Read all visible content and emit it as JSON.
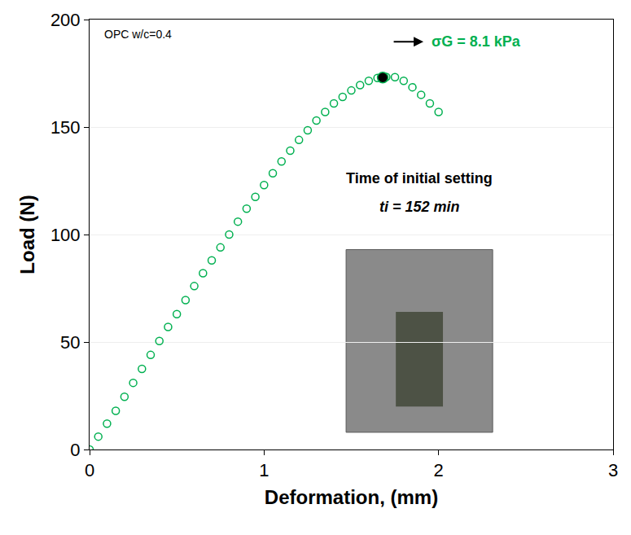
{
  "chart_data": {
    "type": "scatter",
    "x_label": "Deformation, (mm)",
    "y_label": "Load (N)",
    "note": "OPC w/c=0.4",
    "x": [
      0,
      0.05,
      0.1,
      0.15,
      0.2,
      0.25,
      0.3,
      0.35,
      0.4,
      0.45,
      0.5,
      0.55,
      0.6,
      0.65,
      0.7,
      0.75,
      0.8,
      0.85,
      0.9,
      0.95,
      1.0,
      1.05,
      1.1,
      1.15,
      1.2,
      1.25,
      1.3,
      1.35,
      1.4,
      1.45,
      1.5,
      1.55,
      1.6,
      1.65,
      1.7,
      1.75,
      1.8,
      1.85,
      1.9,
      1.95,
      2.0
    ],
    "values": [
      0,
      6,
      12,
      18,
      24.5,
      31,
      37.5,
      44,
      50.5,
      57,
      63,
      69.5,
      76,
      82,
      88,
      94,
      100,
      106,
      112,
      117.5,
      123,
      128.5,
      134,
      139,
      144,
      148.5,
      153,
      157,
      161,
      164,
      167,
      169.5,
      171.5,
      172.8,
      173.3,
      173.2,
      171.5,
      168.5,
      165,
      161,
      157
    ],
    "color": "#00b050",
    "marker": "open circle",
    "peak": {
      "x": 1.68,
      "y": 173,
      "color": "#000000",
      "label": "σG = 8.1 kPa"
    },
    "inset": {
      "title": "Time of initial setting",
      "subtitle": "ti = 152 min"
    },
    "xlim": [
      0,
      3
    ],
    "xticks": [
      0,
      1,
      2,
      3
    ],
    "ylim": [
      0,
      200
    ],
    "yticks": [
      0,
      50,
      100,
      150,
      200
    ],
    "grid": true
  }
}
